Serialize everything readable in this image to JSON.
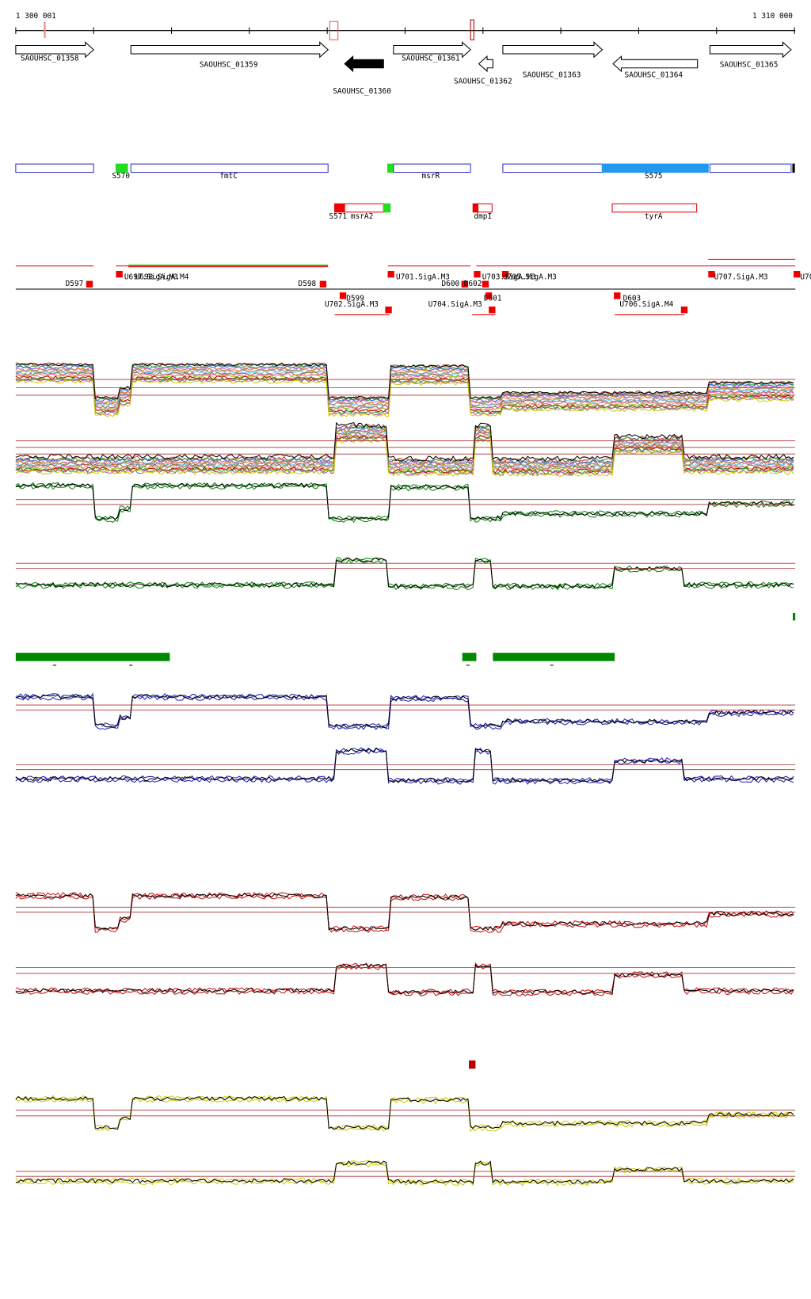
{
  "ruler": {
    "start": "1 300 001",
    "end": "1 310 000"
  },
  "genes": [
    {
      "label": "SAOUHSC_01358"
    },
    {
      "label": "SAOUHSC_01359"
    },
    {
      "label": "SAOUHSC_01360"
    },
    {
      "label": "SAOUHSC_01361"
    },
    {
      "label": "SAOUHSC_01362"
    },
    {
      "label": "SAOUHSC_01363"
    },
    {
      "label": "SAOUHSC_01364"
    },
    {
      "label": "SAOUHSC_01365"
    }
  ],
  "features": [
    {
      "label": "S570"
    },
    {
      "label": "fmtC"
    },
    {
      "label": "msrR"
    },
    {
      "label": "S575"
    },
    {
      "label": "S571"
    },
    {
      "label": "msrA2"
    },
    {
      "label": "dmpI"
    },
    {
      "label": "tyrA"
    }
  ],
  "promoters": [
    {
      "label": "D597"
    },
    {
      "label": "U697.SigA.M3"
    },
    {
      "label": "U698.SigA.M4"
    },
    {
      "label": "D598"
    },
    {
      "label": "U701.SigA.M3"
    },
    {
      "label": "D600"
    },
    {
      "label": "D602"
    },
    {
      "label": "U703.SigA.M3"
    },
    {
      "label": "U705.SigA.M3"
    },
    {
      "label": "U707.SigA.M3"
    },
    {
      "label": "U70"
    },
    {
      "label": "D599"
    },
    {
      "label": "U702.SigA.M3"
    },
    {
      "label": "U704.SigA.M3"
    },
    {
      "label": "D601"
    },
    {
      "label": "D603"
    },
    {
      "label": "U706.SigA.M4"
    }
  ]
}
